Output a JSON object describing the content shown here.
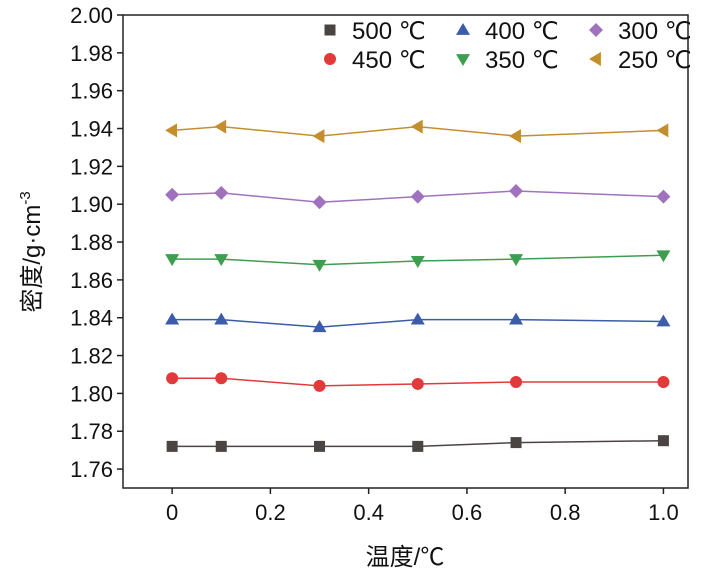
{
  "chart_data": {
    "type": "line",
    "title": "",
    "xlabel": "温度/℃",
    "ylabel": "密度/g·cm",
    "ylabel_sup": "-3",
    "xlim": [
      -0.1,
      1.05
    ],
    "ylim": [
      1.75,
      2.0
    ],
    "xticks": [
      0,
      0.2,
      0.4,
      0.6,
      0.8,
      1.0
    ],
    "xtick_labels": [
      "0",
      "0.2",
      "0.4",
      "0.6",
      "0.8",
      "1.0"
    ],
    "yticks": [
      1.76,
      1.78,
      1.8,
      1.82,
      1.84,
      1.86,
      1.88,
      1.9,
      1.92,
      1.94,
      1.96,
      1.98,
      2.0
    ],
    "ytick_labels": [
      "1.76",
      "1.78",
      "1.80",
      "1.82",
      "1.84",
      "1.86",
      "1.88",
      "1.90",
      "1.92",
      "1.94",
      "1.96",
      "1.98",
      "2.00"
    ],
    "legend_position": "top-right",
    "grid": false,
    "x": [
      0,
      0.1,
      0.3,
      0.5,
      0.7,
      1.0
    ],
    "series": [
      {
        "name": "500 ℃",
        "marker": "square",
        "color": "#4a4443",
        "values": [
          1.772,
          1.772,
          1.772,
          1.772,
          1.774,
          1.775
        ]
      },
      {
        "name": "400 ℃",
        "marker": "triangle-up",
        "color": "#3b5ca8",
        "values": [
          1.839,
          1.839,
          1.835,
          1.839,
          1.839,
          1.838
        ]
      },
      {
        "name": "300 ℃",
        "marker": "diamond",
        "color": "#a072be",
        "values": [
          1.905,
          1.906,
          1.901,
          1.904,
          1.907,
          1.904
        ]
      },
      {
        "name": "450 ℃",
        "marker": "circle",
        "color": "#e23a3a",
        "values": [
          1.808,
          1.808,
          1.804,
          1.805,
          1.806,
          1.806
        ]
      },
      {
        "name": "350 ℃",
        "marker": "triangle-down",
        "color": "#3e9e50",
        "values": [
          1.871,
          1.871,
          1.868,
          1.87,
          1.871,
          1.873
        ]
      },
      {
        "name": "250 ℃",
        "marker": "triangle-left",
        "color": "#c48e2c",
        "values": [
          1.939,
          1.941,
          1.936,
          1.941,
          1.936,
          1.939
        ]
      }
    ]
  }
}
